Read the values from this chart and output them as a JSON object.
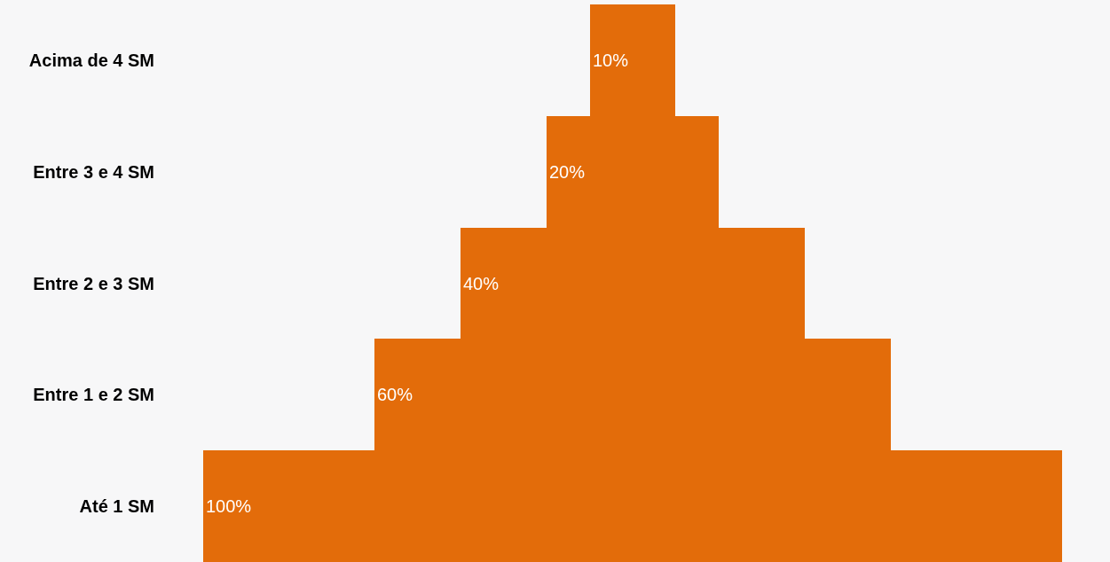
{
  "chart_data": {
    "type": "other",
    "categories": [
      "Acima de 4 SM",
      "Entre 3 e 4 SM",
      "Entre 2 e 3 SM",
      "Entre 1 e 2 SM",
      "Até 1 SM"
    ],
    "values": [
      10,
      20,
      40,
      60,
      100
    ],
    "value_labels": [
      "10%",
      "20%",
      "40%",
      "60%",
      "100%"
    ],
    "color": "#e36c0a"
  }
}
